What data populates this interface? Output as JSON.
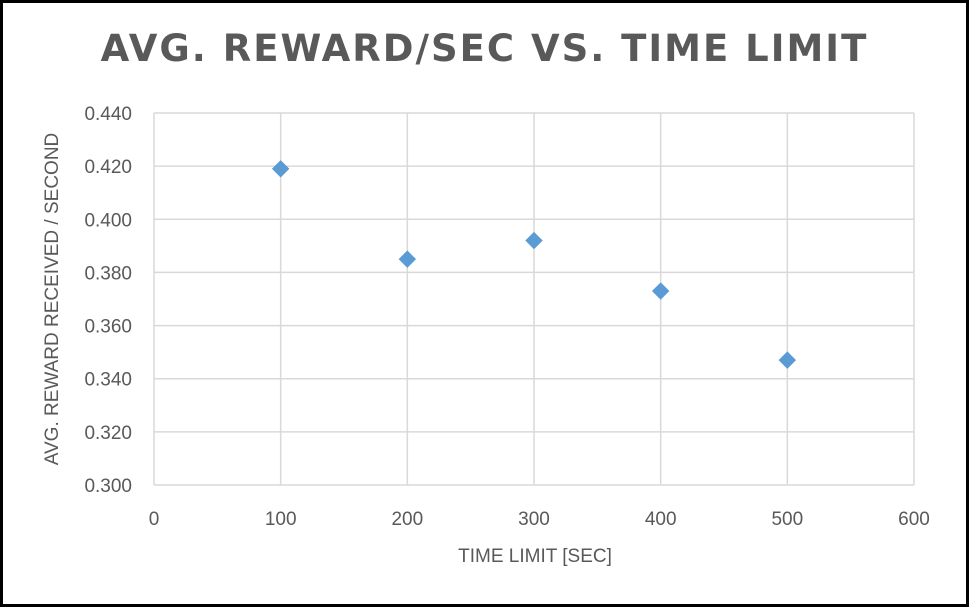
{
  "chart_data": {
    "type": "scatter",
    "title": "AVG. REWARD/SEC VS. TIME LIMIT",
    "xlabel": "TIME LIMIT [SEC]",
    "ylabel": "AVG. REWARD RECEIVED / SECOND",
    "xlim": [
      0,
      600
    ],
    "ylim": [
      0.3,
      0.44
    ],
    "x_ticks": [
      "0",
      "100",
      "200",
      "300",
      "400",
      "500",
      "600"
    ],
    "y_ticks": [
      "0.300",
      "0.320",
      "0.340",
      "0.360",
      "0.380",
      "0.400",
      "0.420",
      "0.440"
    ],
    "grid": true,
    "marker": "diamond",
    "marker_color": "#5b9bd5",
    "points": [
      {
        "x": 100,
        "y": 0.419
      },
      {
        "x": 200,
        "y": 0.385
      },
      {
        "x": 300,
        "y": 0.392
      },
      {
        "x": 400,
        "y": 0.373
      },
      {
        "x": 500,
        "y": 0.347
      }
    ]
  }
}
